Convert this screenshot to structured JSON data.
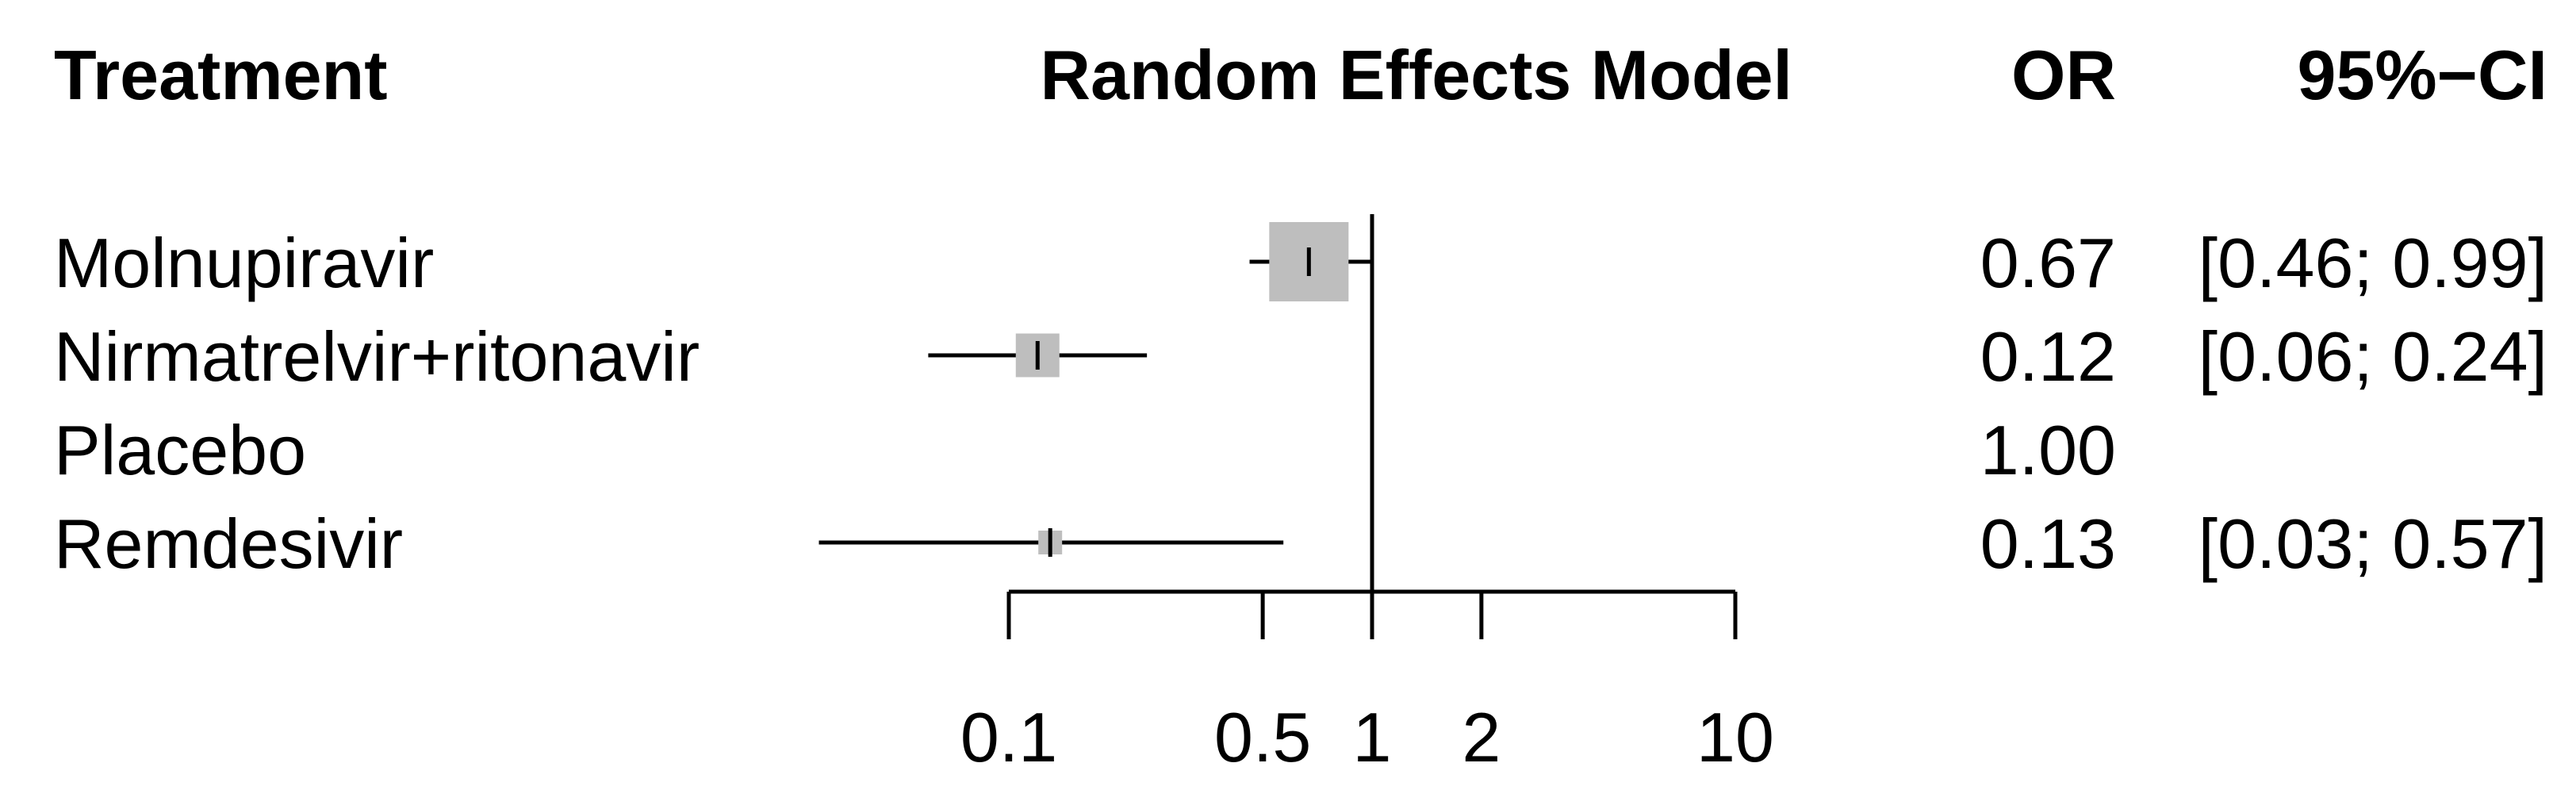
{
  "headers": {
    "treatment": "Treatment",
    "model": "Random Effects Model",
    "or": "OR",
    "ci": "95%−CI"
  },
  "chart_data": {
    "type": "forest",
    "title": "Random Effects Model",
    "xscale": "log",
    "xlim": [
      0.1,
      10
    ],
    "reference_line": 1,
    "xticks": [
      0.1,
      0.5,
      1,
      2,
      10
    ],
    "xtick_labels": [
      "0.1",
      "0.5",
      "1",
      "2",
      "10"
    ],
    "box_color": "#bebebe",
    "rows": [
      {
        "treatment": "Molnupiravir",
        "or": 0.67,
        "lower": 0.46,
        "upper": 0.99,
        "or_text": "0.67",
        "ci_text": "[0.46; 0.99]",
        "weight": 1.0
      },
      {
        "treatment": "Nirmatrelvir+ritonavir",
        "or": 0.12,
        "lower": 0.06,
        "upper": 0.24,
        "or_text": "0.12",
        "ci_text": "[0.06; 0.24]",
        "weight": 0.55
      },
      {
        "treatment": "Placebo",
        "or": 1.0,
        "lower": null,
        "upper": null,
        "or_text": "1.00",
        "ci_text": "",
        "weight": 0
      },
      {
        "treatment": "Remdesivir",
        "or": 0.13,
        "lower": 0.03,
        "upper": 0.57,
        "or_text": "0.13",
        "ci_text": "[0.03; 0.57]",
        "weight": 0.3
      }
    ]
  }
}
